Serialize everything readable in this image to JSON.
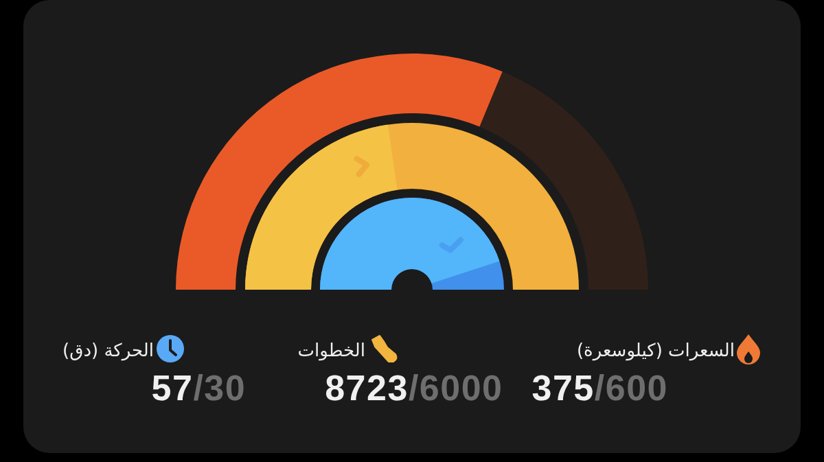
{
  "chart_data": {
    "type": "other",
    "categories": [
      "السعرات (كيلوسعرة)",
      "الخطوات",
      "الحركة (دق)"
    ],
    "series": [
      {
        "values": [
          375,
          8723,
          57
        ],
        "value_labels": [
          "375",
          "8723",
          "57"
        ],
        "colors": [
          "#ea5a29",
          "#f4c245",
          "#53b5fa"
        ]
      },
      {
        "values": [
          600,
          6000,
          30
        ],
        "value_labels": [
          "/600",
          "/6000",
          "/30"
        ],
        "colors": [
          "#2f2119",
          "#f2b03e",
          "#4090ec"
        ]
      }
    ]
  }
}
